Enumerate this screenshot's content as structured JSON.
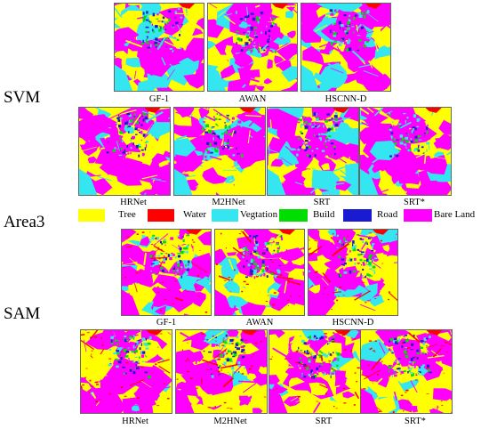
{
  "sections": {
    "svm": "SVM",
    "area": "Area3",
    "sam": "SAM"
  },
  "colors": {
    "tree": "#ffff00",
    "water": "#ff0000",
    "vegetation": "#33e6f0",
    "build": "#00dd00",
    "road": "#1a1ad0",
    "bare_land": "#ff00ff"
  },
  "legend": [
    {
      "label": "Tree",
      "color": "#ffff00"
    },
    {
      "label": "Water",
      "color": "#ff0000"
    },
    {
      "label": "Vegtation",
      "color": "#33e6f0"
    },
    {
      "label": "Build",
      "color": "#00dd00"
    },
    {
      "label": "Road",
      "color": "#1a1ad0"
    },
    {
      "label": "Bare Land",
      "color": "#ff00ff"
    }
  ],
  "svm_top": [
    "GF-1",
    "AWAN",
    "HSCNN-D"
  ],
  "svm_bottom": [
    "HRNet",
    "M2HNet",
    "SRT",
    "SRT*"
  ],
  "sam_top": [
    "GF-1",
    "AWAN",
    "HSCNN-D"
  ],
  "sam_bottom": [
    "HRNet",
    "M2HNet",
    "SRT",
    "SRT*"
  ]
}
